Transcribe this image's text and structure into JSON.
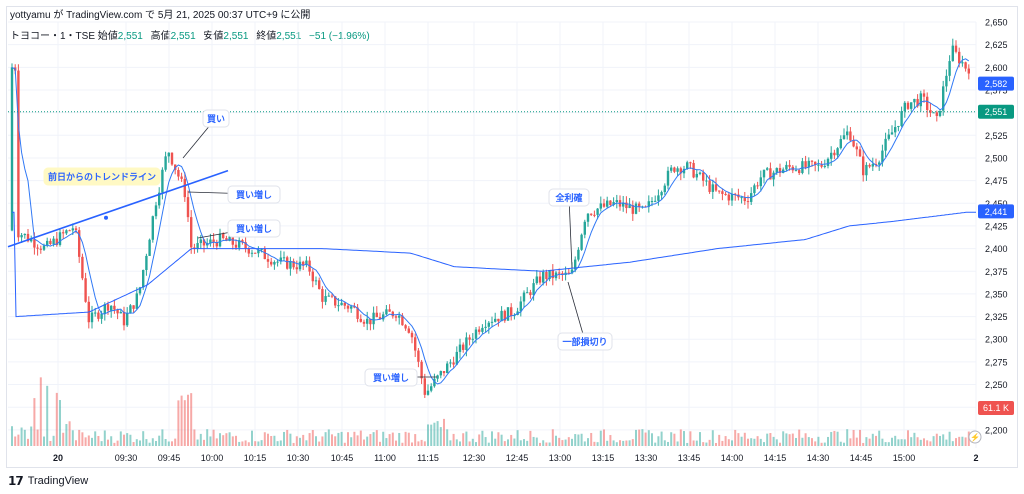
{
  "header": {
    "attribution": "yottyamu が TradingView.com で 5月 21, 2025 00:37 UTC+9 に公開"
  },
  "symbol_line": {
    "symbol": "トヨコー・1・TSE",
    "open_label": "始値",
    "open_value": "2,551",
    "high_label": "高値",
    "high_value": "2,551",
    "low_label": "安値",
    "low_value": "2,551",
    "close_label": "終値",
    "close_value": "2,551",
    "change": "−51 (−1.96%)"
  },
  "footer": {
    "brand": "TradingView"
  },
  "colors": {
    "up": "#26a69a",
    "down": "#ef5350",
    "vwap": "#2962ff",
    "ma": "#3179f5",
    "trendline": "#2962ff",
    "grid": "#f0f3fa",
    "last_price": "#089981"
  },
  "chart_data": {
    "type": "candlestick",
    "interval_minutes": 5,
    "ylim": [
      2180,
      2650
    ],
    "y_ticks": [
      "2,650",
      "2,625",
      "2,600",
      "2,575",
      "2,550",
      "2,525",
      "2,500",
      "2,475",
      "2,450",
      "2,425",
      "2,400",
      "2,375",
      "2,350",
      "2,325",
      "2,300",
      "2,275",
      "2,250",
      "2,225",
      "2,200"
    ],
    "x_ticks": [
      "20",
      "09:30",
      "09:45",
      "10:00",
      "10:15",
      "10:30",
      "10:45",
      "11:00",
      "11:15",
      "12:30",
      "12:45",
      "13:00",
      "13:15",
      "13:30",
      "13:45",
      "14:00",
      "14:15",
      "14:30",
      "14:45",
      "15:00",
      "2"
    ],
    "price_path": [
      {
        "t": "09:00",
        "p": 2420
      },
      {
        "t": "09:10",
        "p": 2400
      },
      {
        "t": "09:20",
        "p": 2425
      },
      {
        "t": "09:25",
        "p": 2320
      },
      {
        "t": "09:32",
        "p": 2340
      },
      {
        "t": "09:37",
        "p": 2320
      },
      {
        "t": "09:42",
        "p": 2350
      },
      {
        "t": "09:48",
        "p": 2455
      },
      {
        "t": "09:52",
        "p": 2510
      },
      {
        "t": "09:58",
        "p": 2460
      },
      {
        "t": "10:00",
        "p": 2400
      },
      {
        "t": "10:10",
        "p": 2410
      },
      {
        "t": "10:20",
        "p": 2400
      },
      {
        "t": "10:30",
        "p": 2385
      },
      {
        "t": "10:40",
        "p": 2380
      },
      {
        "t": "10:45",
        "p": 2345
      },
      {
        "t": "10:55",
        "p": 2335
      },
      {
        "t": "11:00",
        "p": 2320
      },
      {
        "t": "11:10",
        "p": 2330
      },
      {
        "t": "11:15",
        "p": 2310
      },
      {
        "t": "11:20",
        "p": 2240
      },
      {
        "t": "12:30",
        "p": 2280
      },
      {
        "t": "12:40",
        "p": 2320
      },
      {
        "t": "12:50",
        "p": 2330
      },
      {
        "t": "13:00",
        "p": 2370
      },
      {
        "t": "13:10",
        "p": 2370
      },
      {
        "t": "13:15",
        "p": 2440
      },
      {
        "t": "13:25",
        "p": 2450
      },
      {
        "t": "13:35",
        "p": 2440
      },
      {
        "t": "13:45",
        "p": 2490
      },
      {
        "t": "13:50",
        "p": 2490
      },
      {
        "t": "14:00",
        "p": 2460
      },
      {
        "t": "14:10",
        "p": 2455
      },
      {
        "t": "14:15",
        "p": 2480
      },
      {
        "t": "14:25",
        "p": 2490
      },
      {
        "t": "14:35",
        "p": 2490
      },
      {
        "t": "14:45",
        "p": 2530
      },
      {
        "t": "14:50",
        "p": 2485
      },
      {
        "t": "14:55",
        "p": 2500
      },
      {
        "t": "15:05",
        "p": 2560
      },
      {
        "t": "15:10",
        "p": 2565
      },
      {
        "t": "15:15",
        "p": 2540
      },
      {
        "t": "15:20",
        "p": 2620
      },
      {
        "t": "15:25",
        "p": 2600
      }
    ],
    "vwap_path": [
      {
        "t": "09:00",
        "p": 2325
      },
      {
        "t": "09:25",
        "p": 2330
      },
      {
        "t": "09:45",
        "p": 2360
      },
      {
        "t": "10:00",
        "p": 2400
      },
      {
        "t": "10:45",
        "p": 2400
      },
      {
        "t": "11:15",
        "p": 2395
      },
      {
        "t": "12:30",
        "p": 2380
      },
      {
        "t": "13:00",
        "p": 2375
      },
      {
        "t": "13:30",
        "p": 2385
      },
      {
        "t": "14:00",
        "p": 2400
      },
      {
        "t": "14:30",
        "p": 2410
      },
      {
        "t": "14:45",
        "p": 2425
      },
      {
        "t": "15:00",
        "p": 2430
      },
      {
        "t": "15:25",
        "p": 2440
      }
    ],
    "price_labels": [
      {
        "text": "2,582",
        "price": 2582,
        "color": "#2962ff"
      },
      {
        "text": "2,551",
        "price": 2551,
        "color": "#089981"
      },
      {
        "text": "2,441",
        "price": 2441,
        "color": "#2962ff"
      }
    ],
    "volume_label": "61.1 K",
    "trendline_label": "前日からのトレンドライン",
    "annotations": [
      {
        "text": "買い",
        "t": "09:50",
        "price": 2520
      },
      {
        "text": "買い増し",
        "t": "09:52",
        "price": 2475
      },
      {
        "text": "買い増し",
        "t": "09:58",
        "price": 2430
      },
      {
        "text": "全利確",
        "t": "13:05",
        "price": 2385
      },
      {
        "text": "一部損切り",
        "t": "13:05",
        "price": 2370
      },
      {
        "text": "買い増し",
        "t": "11:20",
        "price": 2262
      }
    ]
  }
}
